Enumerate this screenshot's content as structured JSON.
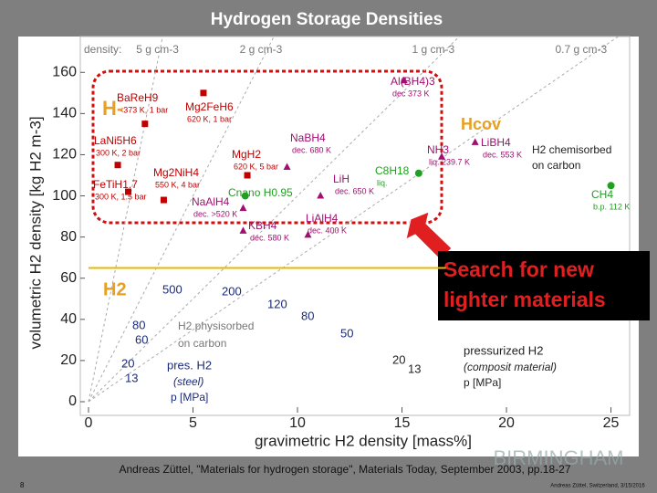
{
  "chart_data": {
    "type": "scatter",
    "title": "Hydrogen Storage Densities",
    "xlabel": "gravimetric H2 density [mass%]",
    "ylabel": "volumetric H2 density [kg H2 m-3]",
    "xlim": [
      0,
      25.5
    ],
    "ylim": [
      0,
      165
    ],
    "xticks": [
      0,
      5,
      10,
      15,
      20,
      25
    ],
    "yticks": [
      0,
      20,
      40,
      60,
      80,
      100,
      120,
      140,
      160
    ],
    "density_label": "density:",
    "densities": [
      {
        "value": 5,
        "label": "5 g cm-3"
      },
      {
        "value": 2,
        "label": "2 g cm-3"
      },
      {
        "value": 1,
        "label": "1 g cm-3"
      },
      {
        "value": 0.7,
        "label": "0.7 g cm-3"
      }
    ],
    "reference_line": {
      "y": 65,
      "x": [
        0,
        17.1
      ],
      "color": "#e8b800"
    },
    "points": [
      {
        "name": "BaReH9",
        "note": "<373 K, 1 bar",
        "x": 2.7,
        "y": 135,
        "marker": "square",
        "color": "#c00000"
      },
      {
        "name": "Mg2FeH6",
        "note": "620 K, 1 bar",
        "x": 5.5,
        "y": 150,
        "marker": "square",
        "color": "#c00000"
      },
      {
        "name": "LaNi5H6",
        "note": "300 K, 2 bar",
        "x": 1.4,
        "y": 115,
        "marker": "square",
        "color": "#c00000"
      },
      {
        "name": "FeTiH1.7",
        "note": "300 K, 1.5 bar",
        "x": 1.9,
        "y": 102,
        "marker": "square",
        "color": "#c00000"
      },
      {
        "name": "Mg2NiH4",
        "note": "550 K, 4 bar",
        "x": 3.6,
        "y": 98,
        "marker": "square",
        "color": "#c00000"
      },
      {
        "name": "MgH2",
        "note": "620 K, 5 bar",
        "x": 7.6,
        "y": 110,
        "marker": "square",
        "color": "#c00000"
      },
      {
        "name": "NaBH4",
        "note": "dec. 680 K",
        "x": 9.5,
        "y": 114,
        "marker": "triangle",
        "color": "#a01070"
      },
      {
        "name": "LiH",
        "note": "dec. 650 K",
        "x": 11.1,
        "y": 100,
        "marker": "triangle",
        "color": "#a01070"
      },
      {
        "name": "LiAlH4",
        "note": "dec. 400 K",
        "x": 10.5,
        "y": 81,
        "marker": "triangle",
        "color": "#a01070"
      },
      {
        "name": "NaAlH4",
        "note": "dec. >520 K",
        "x": 7.4,
        "y": 94,
        "marker": "triangle",
        "color": "#a01070"
      },
      {
        "name": "KBH4",
        "note": "dec. 580 K",
        "x": 7.4,
        "y": 83,
        "marker": "triangle",
        "color": "#a01070"
      },
      {
        "name": "Al(BH4)3",
        "note": "dec 373 K",
        "x": 15.1,
        "y": 156,
        "marker": "triangle",
        "color": "#a01070"
      },
      {
        "name": "LiBH4",
        "note": "dec. 553 K",
        "x": 18.5,
        "y": 126,
        "marker": "triangle",
        "color": "#a01070"
      },
      {
        "name": "NH3",
        "note": "liq. 239.7 K",
        "x": 16.9,
        "y": 119,
        "marker": "triangle",
        "color": "#a01070"
      },
      {
        "name": "C8H18",
        "note": "liq.",
        "x": 15.8,
        "y": 111,
        "marker": "circle",
        "color": "#20a020"
      },
      {
        "name": "CH4",
        "note": "b.p. 112 K",
        "x": 25,
        "y": 105,
        "marker": "circle",
        "color": "#20a020"
      },
      {
        "name": "Cnano H0.95",
        "x": 7.5,
        "y": 100,
        "marker": "circle",
        "color": "#20a020"
      }
    ],
    "annotations": [
      "H-",
      "Hcov",
      "H2",
      "H2 chemisorbed",
      "on carbon",
      "H2 physisorbed",
      "on carbon",
      "pressurized H2",
      "(composit material)",
      "p [MPa]",
      "pres. H2",
      "(steel)",
      "p [MPa]",
      "500",
      "200",
      "120",
      "80",
      "50",
      "80",
      "60",
      "20",
      "13",
      "20",
      "13"
    ],
    "callout": [
      "Search for new",
      "lighter materials"
    ],
    "citation": "Andreas Züttel, \"Materials for hydrogen storage\", Materials Today, September 2003, pp.18-27",
    "watermark": "BIRMINGHAM",
    "slide_number": "8",
    "footer": "Andreas Züttel, Switzerland, 3/15/2016"
  }
}
